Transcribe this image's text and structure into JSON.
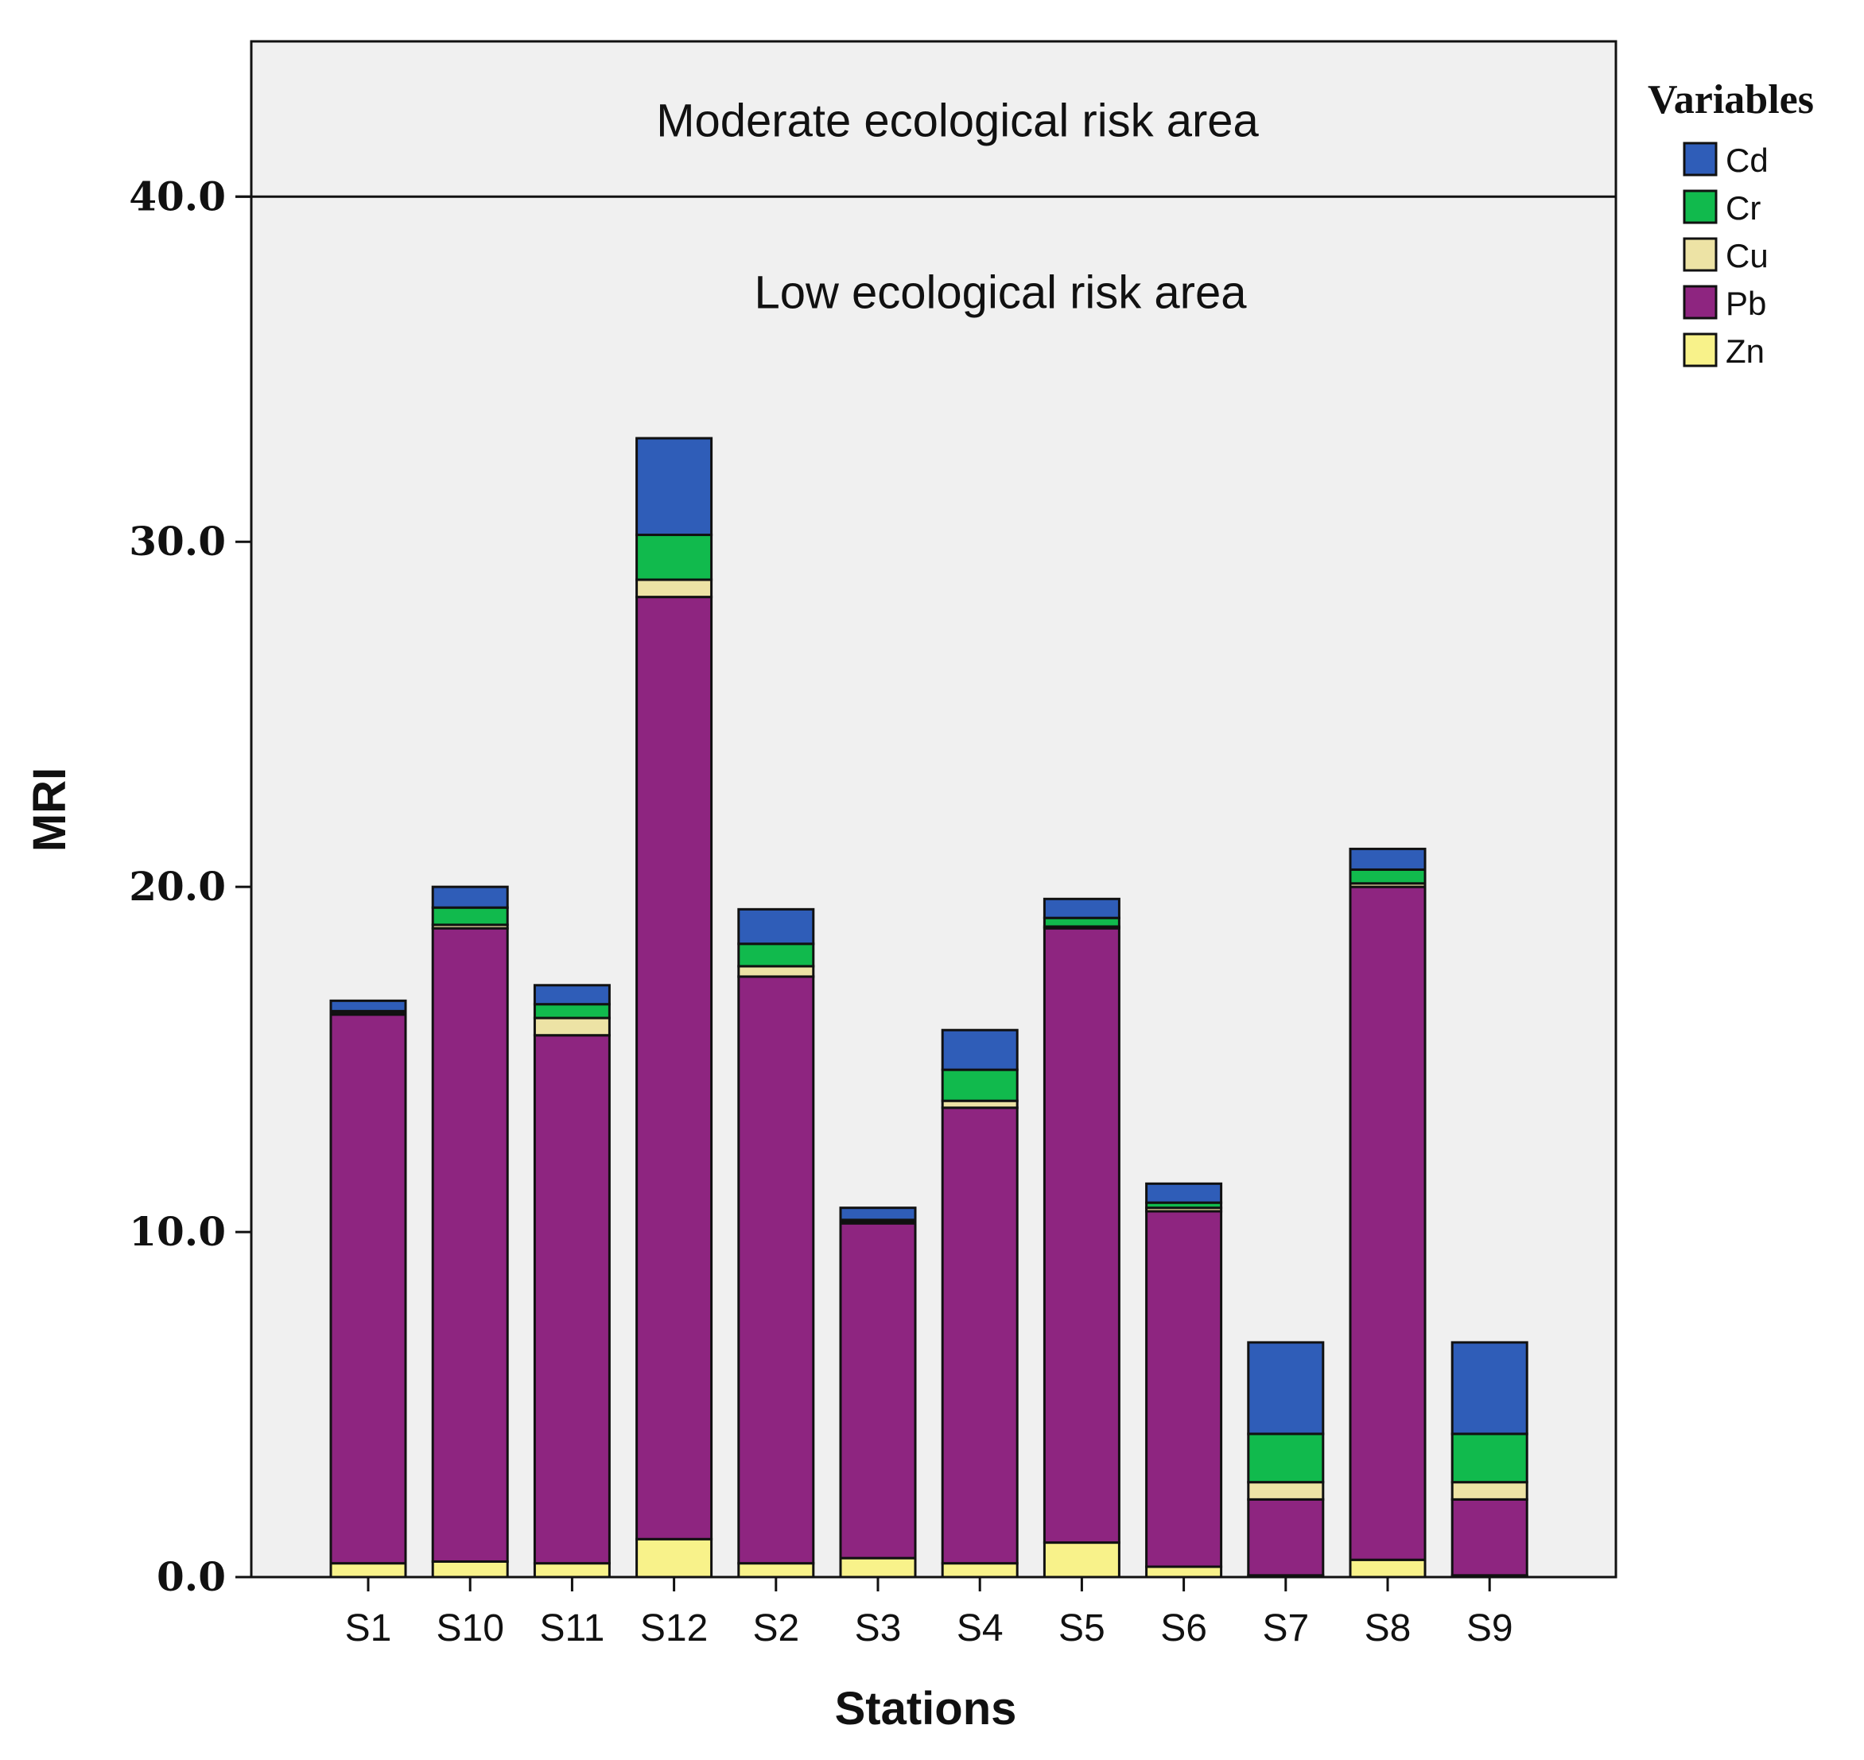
{
  "chart_data": {
    "type": "bar",
    "stacked": true,
    "title": "",
    "xlabel": "Stations",
    "ylabel": "MRI",
    "ylim": [
      0,
      44.5
    ],
    "yticks": [
      "0.0",
      "10.0",
      "20.0",
      "30.0",
      "40.0"
    ],
    "ytick_values": [
      0,
      10,
      20,
      30,
      40
    ],
    "grid": false,
    "legend": {
      "title": "Variables",
      "position": "right"
    },
    "categories": [
      "S1",
      "S10",
      "S11",
      "S12",
      "S2",
      "S3",
      "S4",
      "S5",
      "S6",
      "S7",
      "S8",
      "S9"
    ],
    "threshold": {
      "value": 40,
      "upper_label": "Moderate ecological risk area",
      "lower_label": "Low ecological risk area"
    },
    "series": [
      {
        "name": "Zn",
        "color": "#F8F28A",
        "values": [
          0.4,
          0.45,
          0.4,
          1.1,
          0.4,
          0.55,
          0.4,
          1.0,
          0.3,
          0.05,
          0.5,
          0.05
        ]
      },
      {
        "name": "Pb",
        "color": "#8E2580",
        "values": [
          15.9,
          18.35,
          15.3,
          27.3,
          17.0,
          9.7,
          13.2,
          17.8,
          10.3,
          2.2,
          19.5,
          2.2
        ]
      },
      {
        "name": "Cu",
        "color": "#EDE3A5",
        "values": [
          0.05,
          0.1,
          0.5,
          0.5,
          0.3,
          0.05,
          0.2,
          0.05,
          0.1,
          0.5,
          0.1,
          0.5
        ]
      },
      {
        "name": "Cr",
        "color": "#11BA4D",
        "values": [
          0.05,
          0.5,
          0.4,
          1.3,
          0.65,
          0.05,
          0.9,
          0.25,
          0.15,
          1.4,
          0.4,
          1.4
        ]
      },
      {
        "name": "Cd",
        "color": "#2F5DB8",
        "values": [
          0.3,
          0.6,
          0.55,
          2.8,
          1.0,
          0.35,
          1.15,
          0.55,
          0.55,
          2.65,
          0.6,
          2.65
        ]
      }
    ],
    "legend_order": [
      "Cd",
      "Cr",
      "Cu",
      "Pb",
      "Zn"
    ]
  }
}
